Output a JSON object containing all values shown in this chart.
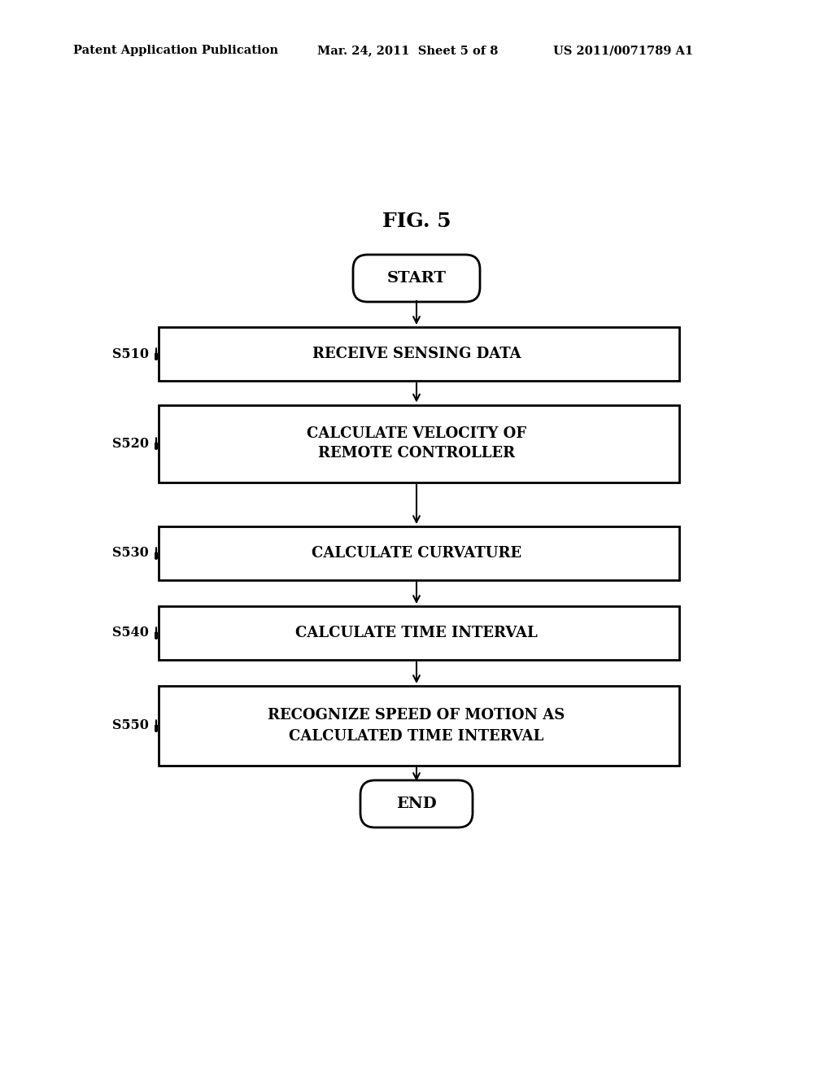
{
  "bg_color": "#ffffff",
  "fig_title": "FIG. 5",
  "header_left": "Patent Application Publication",
  "header_mid": "Mar. 24, 2011  Sheet 5 of 8",
  "header_right": "US 2011/0071789 A1",
  "start_label": "START",
  "end_label": "END",
  "boxes": [
    {
      "label": "RECEIVE SENSING DATA",
      "step": "S510"
    },
    {
      "label": "CALCULATE VELOCITY OF\nREMOTE CONTROLLER",
      "step": "S520"
    },
    {
      "label": "CALCULATE CURVATURE",
      "step": "S530"
    },
    {
      "label": "CALCULATE TIME INTERVAL",
      "step": "S540"
    },
    {
      "label": "RECOGNIZE SPEED OF MOTION AS\nCALCULATED TIME INTERVAL",
      "step": "S550"
    }
  ],
  "box_color": "#ffffff",
  "box_edge_color": "#000000",
  "text_color": "#000000",
  "arrow_color": "#000000",
  "font_family": "DejaVu Serif"
}
